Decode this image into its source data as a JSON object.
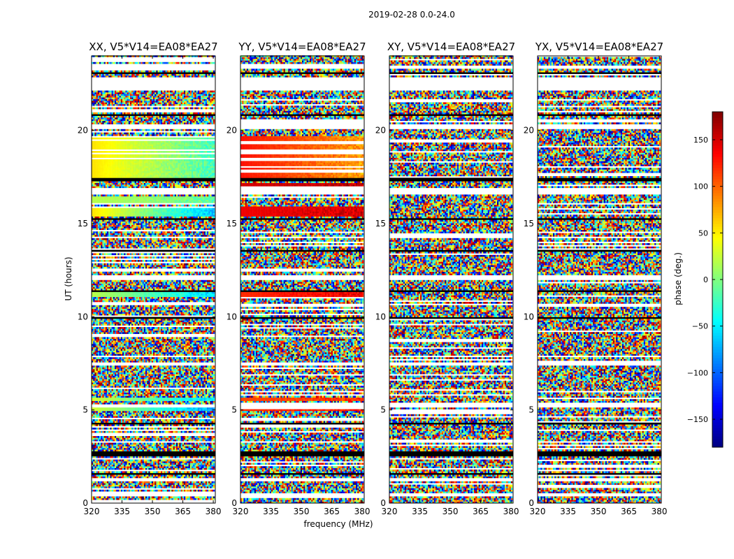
{
  "suptitle": "2019-02-28 0.0-24.0",
  "xlabel": "frequency (MHz)",
  "ylabel": "UT (hours)",
  "colorbar_label": "phase (deg.)",
  "chart_data": {
    "type": "heatmap",
    "colormap": "jet",
    "clim": [
      -180,
      180
    ],
    "xlim": [
      320,
      381
    ],
    "ylim": [
      0,
      24
    ],
    "xticks": [
      320,
      335,
      350,
      365,
      380
    ],
    "yticks": [
      0,
      5,
      10,
      15,
      20
    ],
    "colorbar_ticks": [
      -150,
      -100,
      -50,
      0,
      50,
      100,
      150
    ],
    "panels": [
      {
        "title": "XX, V5*V14=EA08*EA27"
      },
      {
        "title": "YY, V5*V14=EA08*EA27"
      },
      {
        "title": "XY, V5*V14=EA08*EA27"
      },
      {
        "title": "YX, V5*V14=EA08*EA27"
      }
    ]
  }
}
